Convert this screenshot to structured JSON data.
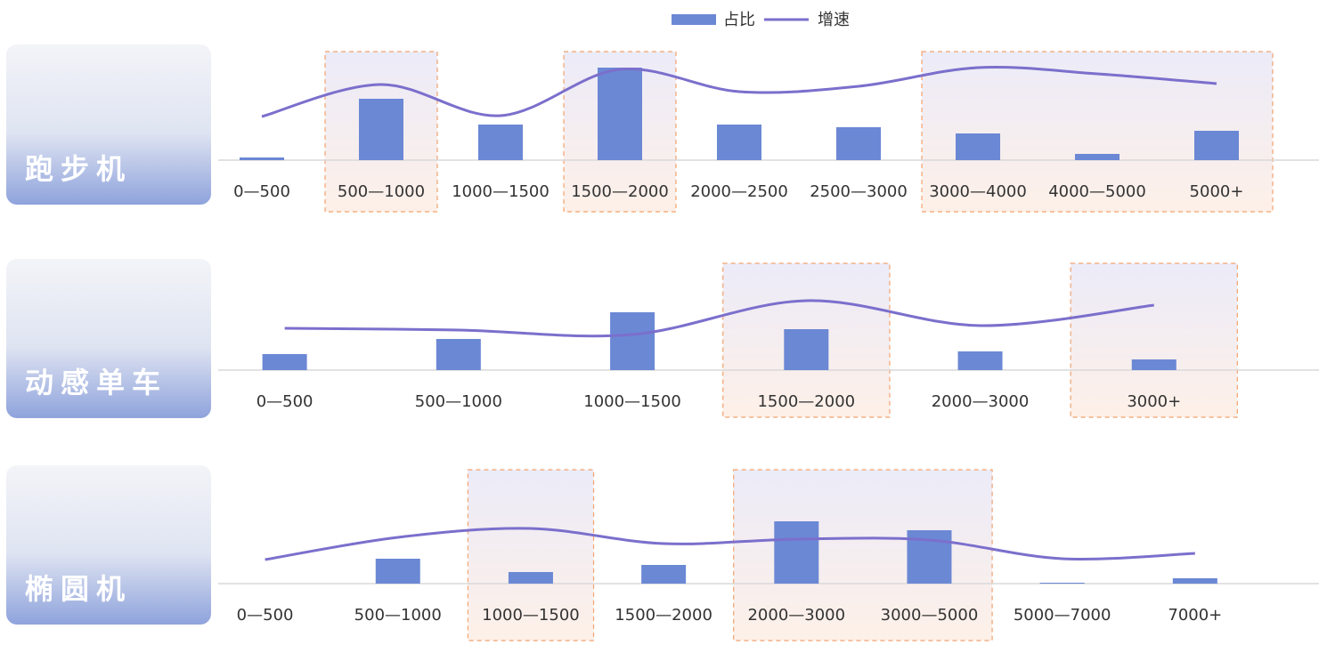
{
  "chart_data": [
    {
      "type": "combo",
      "title": "跑步机",
      "categories": [
        "0—500",
        "500—1000",
        "1000—1500",
        "1500—2000",
        "2000—2500",
        "2500—3000",
        "3000—4000",
        "4000—5000",
        "5000+"
      ],
      "series": [
        {
          "name": "占比",
          "color": "#6b88d4",
          "values": [
            3,
            69,
            40,
            104,
            40,
            37,
            30,
            7,
            33
          ]
        },
        {
          "name": "增速",
          "color": "#7b6fcc",
          "values": [
            49,
            85,
            50,
            102,
            77,
            83,
            104,
            97,
            86
          ]
        }
      ],
      "highlight": [
        [
          1,
          1
        ],
        [
          3,
          3
        ],
        [
          6,
          8
        ]
      ]
    },
    {
      "type": "combo",
      "title": "动感单车",
      "categories": [
        "0—500",
        "500—1000",
        "1000—1500",
        "1500—2000",
        "2000—3000",
        "3000+"
      ],
      "series": [
        {
          "name": "占比",
          "color": "#6b88d4",
          "values": [
            18,
            35,
            65,
            46,
            21,
            12
          ]
        },
        {
          "name": "增速",
          "color": "#7b6fcc",
          "values": [
            47,
            45,
            40,
            78,
            50,
            73
          ]
        }
      ],
      "highlight": [
        [
          3,
          3
        ],
        [
          5,
          5
        ]
      ]
    },
    {
      "type": "combo",
      "title": "椭圆机",
      "categories": [
        "0—500",
        "500—1000",
        "1000—1500",
        "1500—2000",
        "2000—3000",
        "3000—5000",
        "5000—7000",
        "7000+"
      ],
      "series": [
        {
          "name": "占比",
          "color": "#6b88d4",
          "values": [
            0,
            28,
            13,
            21,
            70,
            60,
            1,
            6
          ]
        },
        {
          "name": "增速",
          "color": "#7b6fcc",
          "values": [
            27,
            52,
            62,
            45,
            50,
            49,
            28,
            34
          ]
        }
      ],
      "highlight": [
        [
          2,
          2
        ],
        [
          4,
          5
        ]
      ]
    }
  ]
}
